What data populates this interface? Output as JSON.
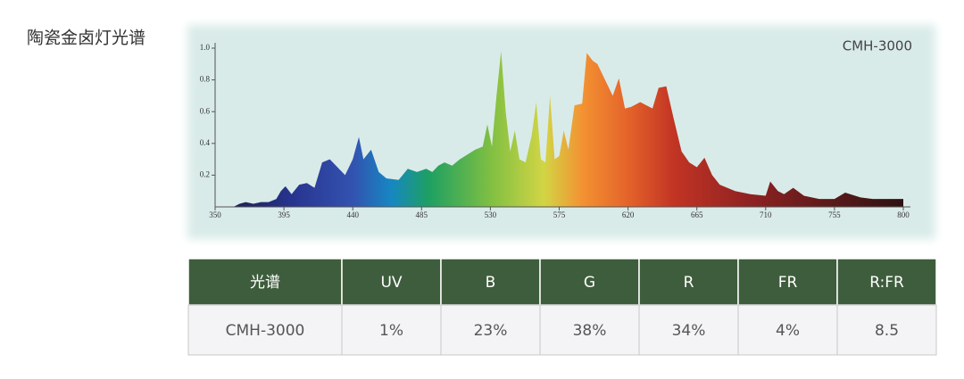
{
  "page_title": "陶瓷金卤灯光谱",
  "chart_data": {
    "type": "area",
    "series_label": "CMH-3000",
    "x": [
      362,
      366,
      370,
      375,
      380,
      385,
      390,
      393,
      396,
      400,
      405,
      410,
      415,
      420,
      425,
      430,
      435,
      440,
      444,
      447,
      452,
      457,
      462,
      470,
      476,
      482,
      488,
      492,
      496,
      500,
      505,
      510,
      515,
      520,
      525,
      528,
      531,
      534,
      537,
      540,
      543,
      546,
      549,
      553,
      557,
      560,
      563,
      566,
      569,
      572,
      575,
      578,
      581,
      585,
      590,
      593,
      597,
      600,
      605,
      610,
      614,
      618,
      622,
      628,
      632,
      636,
      640,
      645,
      650,
      655,
      660,
      665,
      670,
      675,
      680,
      690,
      700,
      710,
      713,
      718,
      722,
      728,
      735,
      745,
      755,
      762,
      772,
      780,
      790,
      800
    ],
    "values": [
      0,
      0.02,
      0.03,
      0.02,
      0.03,
      0.03,
      0.05,
      0.1,
      0.13,
      0.08,
      0.14,
      0.15,
      0.12,
      0.28,
      0.3,
      0.25,
      0.2,
      0.3,
      0.44,
      0.3,
      0.36,
      0.22,
      0.18,
      0.17,
      0.24,
      0.22,
      0.24,
      0.22,
      0.26,
      0.28,
      0.26,
      0.3,
      0.33,
      0.36,
      0.38,
      0.52,
      0.38,
      0.7,
      0.98,
      0.6,
      0.35,
      0.48,
      0.3,
      0.28,
      0.45,
      0.66,
      0.3,
      0.28,
      0.7,
      0.3,
      0.32,
      0.48,
      0.36,
      0.64,
      0.65,
      0.97,
      0.92,
      0.9,
      0.8,
      0.7,
      0.81,
      0.62,
      0.63,
      0.66,
      0.64,
      0.62,
      0.75,
      0.76,
      0.55,
      0.35,
      0.28,
      0.25,
      0.31,
      0.2,
      0.14,
      0.1,
      0.08,
      0.07,
      0.16,
      0.1,
      0.08,
      0.12,
      0.07,
      0.05,
      0.05,
      0.09,
      0.06,
      0.05,
      0.05,
      0.05
    ],
    "xlim": [
      350,
      800
    ],
    "xticks": [
      350,
      395,
      440,
      485,
      530,
      575,
      620,
      665,
      710,
      755,
      800
    ],
    "ylim": [
      0,
      1
    ],
    "yticks": [
      0.2,
      0.4,
      0.6,
      {
        "value": 0.8,
        "label": "0.8"
      },
      {
        "value": 1,
        "label": "1.0"
      }
    ],
    "gradient": [
      {
        "x": 350,
        "color": "#1b1a45"
      },
      {
        "x": 400,
        "color": "#27348f"
      },
      {
        "x": 440,
        "color": "#3352b0"
      },
      {
        "x": 465,
        "color": "#1687c2"
      },
      {
        "x": 490,
        "color": "#1ea062"
      },
      {
        "x": 530,
        "color": "#7fbf42"
      },
      {
        "x": 565,
        "color": "#d2d545"
      },
      {
        "x": 590,
        "color": "#f39232"
      },
      {
        "x": 620,
        "color": "#e4632a"
      },
      {
        "x": 650,
        "color": "#c23424"
      },
      {
        "x": 700,
        "color": "#8e2222"
      },
      {
        "x": 800,
        "color": "#2e1212"
      }
    ]
  },
  "table": {
    "header": [
      "光谱",
      "UV",
      "B",
      "G",
      "R",
      "FR",
      "R:FR"
    ],
    "rows": [
      [
        "CMH-3000",
        "1%",
        "23%",
        "38%",
        "34%",
        "4%",
        "8.5"
      ]
    ]
  }
}
